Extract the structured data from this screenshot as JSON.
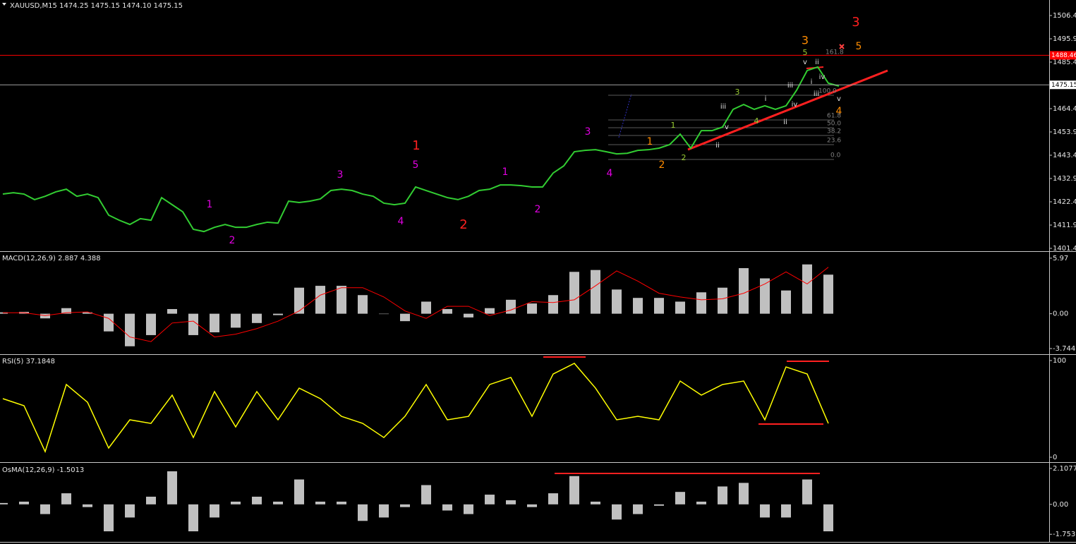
{
  "chart_data": [
    {
      "type": "line",
      "title": "XAUUSD,M15  1474.25 1475.15 1474.10 1475.15",
      "color": "#32cd32",
      "values": [
        1425.9,
        1426.5,
        1425.9,
        1423.4,
        1424.9,
        1426.9,
        1428.1,
        1424.9,
        1425.9,
        1424.3,
        1416.4,
        1414.1,
        1412.2,
        1414.8,
        1414.1,
        1424.3,
        1421.1,
        1417.9,
        1410.0,
        1409.0,
        1410.9,
        1412.2,
        1410.9,
        1410.9,
        1412.2,
        1413.2,
        1412.8,
        1422.7,
        1422.1,
        1422.7,
        1423.7,
        1427.5,
        1428.1,
        1427.5,
        1425.9,
        1424.9,
        1421.8,
        1421.1,
        1421.8,
        1429.1,
        1427.5,
        1425.9,
        1424.3,
        1423.4,
        1424.9,
        1427.5,
        1428.1,
        1430.0,
        1430.0,
        1429.7,
        1429.1,
        1429.1,
        1435.4,
        1438.6,
        1445.0,
        1445.6,
        1445.9,
        1445.0,
        1444.0,
        1444.3,
        1445.6,
        1445.9,
        1446.6,
        1448.2,
        1452.9,
        1446.6,
        1454.5,
        1454.5,
        1456.1,
        1464.1,
        1466.3,
        1464.1,
        1465.7,
        1464.1,
        1465.7,
        1472.7,
        1481.6,
        1483.2,
        1475.9,
        1474.6
      ],
      "ylim": [
        1400.46,
        1513.41
      ],
      "yticks": [
        1506.41,
        1495.91,
        1485.41,
        1464.41,
        1453.91,
        1443.41,
        1432.91,
        1422.41,
        1411.91,
        1401.41
      ],
      "price_lines": [
        {
          "value": 1488.46,
          "color": "#ff0000"
        },
        {
          "value": 1475.15,
          "color": "#a0a0a0"
        }
      ],
      "annotations": [
        {
          "text": "1",
          "color": "#e000e0"
        },
        {
          "text": "2",
          "color": "#e000e0"
        },
        {
          "text": "3",
          "color": "#e000e0"
        },
        {
          "text": "4",
          "color": "#e000e0"
        },
        {
          "text": "5",
          "color": "#e000e0"
        },
        {
          "text": "1",
          "color": "#e000e0"
        },
        {
          "text": "2",
          "color": "#e000e0"
        },
        {
          "text": "3",
          "color": "#e000e0"
        },
        {
          "text": "4",
          "color": "#e000e0"
        },
        {
          "text": "1",
          "color": "#ff2020"
        },
        {
          "text": "2",
          "color": "#ff2020"
        },
        {
          "text": "3",
          "color": "#ff2020"
        },
        {
          "text": "1",
          "color": "#ff8c00"
        },
        {
          "text": "2",
          "color": "#ff8c00"
        },
        {
          "text": "3",
          "color": "#ff8c00"
        },
        {
          "text": "5",
          "color": "#ff8c00"
        },
        {
          "text": "4",
          "color": "#ff8c00"
        },
        {
          "text": "1",
          "color": "#9acd32"
        },
        {
          "text": "2",
          "color": "#9acd32"
        },
        {
          "text": "3",
          "color": "#9acd32"
        },
        {
          "text": "5",
          "color": "#9acd32"
        },
        {
          "text": "4",
          "color": "#9acd32"
        },
        {
          "text": "iii",
          "color": "#e0e0e0"
        },
        {
          "text": "v",
          "color": "#e0e0e0"
        },
        {
          "text": "ii",
          "color": "#e0e0e0"
        },
        {
          "text": "i",
          "color": "#e0e0e0"
        },
        {
          "text": "iv",
          "color": "#e0e0e0"
        },
        {
          "text": "ii",
          "color": "#e0e0e0"
        },
        {
          "text": "iii",
          "color": "#e0e0e0"
        },
        {
          "text": "v",
          "color": "#e0e0e0"
        },
        {
          "text": "ii",
          "color": "#e0e0e0"
        },
        {
          "text": "i",
          "color": "#e0e0e0"
        },
        {
          "text": "iv",
          "color": "#e0e0e0"
        },
        {
          "text": "iii",
          "color": "#e0e0e0"
        },
        {
          "text": "v",
          "color": "#e0e0e0"
        }
      ],
      "fib_labels": [
        "161.8",
        "100.0",
        "61.8",
        "50.0",
        "38.2",
        "23.6",
        "0.0"
      ]
    },
    {
      "type": "macd",
      "title": "MACD(12,26,9) 2.887 4.388",
      "color": "#c0c0c0",
      "values": [
        0.15,
        0.2,
        -0.5,
        0.6,
        0.15,
        -1.9,
        -3.5,
        -2.3,
        0.5,
        -2.3,
        -2.0,
        -1.5,
        -1.0,
        -0.15,
        2.8,
        3.0,
        3.0,
        2.0,
        0.0,
        -0.8,
        1.3,
        0.5,
        -0.4,
        0.6,
        1.5,
        1.1,
        2.0,
        4.5,
        4.7,
        2.6,
        1.7,
        1.7,
        1.3,
        2.3,
        2.8,
        4.9,
        3.8,
        2.5,
        5.3,
        4.2
      ],
      "signal": {
        "color": "#ff0000",
        "values": [
          0.1,
          0.1,
          -0.2,
          0.1,
          0.2,
          -0.5,
          -2.5,
          -3.0,
          -1.0,
          -0.8,
          -2.5,
          -2.2,
          -1.6,
          -0.8,
          0.3,
          2.0,
          2.8,
          2.8,
          1.8,
          0.3,
          -0.5,
          0.8,
          0.8,
          -0.2,
          0.4,
          1.3,
          1.2,
          1.5,
          3.0,
          4.6,
          3.5,
          2.2,
          1.8,
          1.5,
          1.6,
          2.2,
          3.2,
          4.5,
          3.2,
          5.0
        ]
      },
      "ylim": [
        -4.2,
        6.57
      ],
      "yticks": [
        5.97,
        {
          "value": 0,
          "label": "0.00"
        },
        -3.744
      ]
    },
    {
      "type": "line",
      "title": "RSI(5) 37.1848",
      "color": "#ffff00",
      "values": [
        60.6,
        53.3,
        5.8,
        75.2,
        56.9,
        9.5,
        38.7,
        35.0,
        64.2,
        20.4,
        67.9,
        31.4,
        67.9,
        38.7,
        71.5,
        60.6,
        42.3,
        35.0,
        20.4,
        42.3,
        75.2,
        38.7,
        42.3,
        75.2,
        82.5,
        42.3,
        86.1,
        97.1,
        71.5,
        38.7,
        42.3,
        38.7,
        78.8,
        64.2,
        75.2,
        78.8,
        38.7,
        93.4,
        86.1,
        35.0
      ],
      "ylim": [
        -2.9,
        105.1
      ],
      "yticks": [
        100,
        0
      ]
    },
    {
      "type": "bar",
      "title": "OsMA(12,26,9) -1.5013",
      "color": "#c0c0c0",
      "values": [
        0.08,
        0.16,
        -0.57,
        0.65,
        -0.16,
        -1.58,
        -0.77,
        0.45,
        1.94,
        -1.58,
        -0.77,
        0.16,
        0.45,
        0.16,
        1.46,
        0.16,
        0.16,
        -0.97,
        -0.77,
        -0.16,
        1.13,
        -0.36,
        -0.57,
        0.57,
        0.24,
        -0.16,
        0.65,
        1.66,
        0.16,
        -0.89,
        -0.57,
        -0.08,
        0.73,
        0.16,
        1.05,
        1.26,
        -0.77,
        -0.77,
        1.46,
        -1.58
      ],
      "ylim": [
        -2.2,
        2.351
      ],
      "yticks": [
        2.1077,
        {
          "value": 0,
          "label": "0.00"
        },
        -1.7539
      ]
    }
  ]
}
